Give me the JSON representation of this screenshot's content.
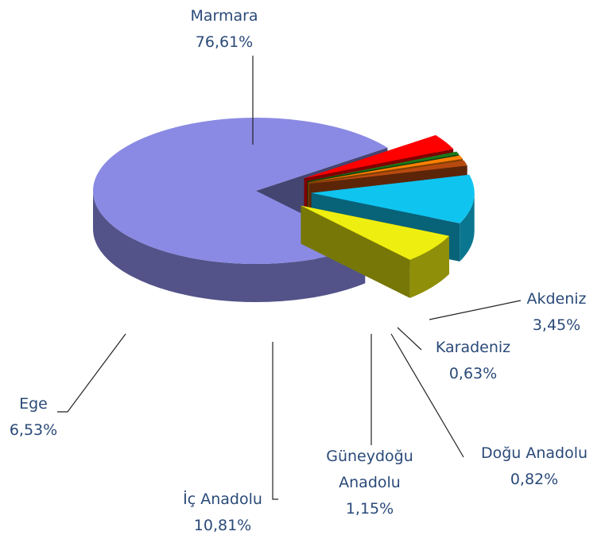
{
  "chart_data": {
    "type": "pie3d",
    "categories": [
      "Marmara",
      "Akdeniz",
      "Karadeniz",
      "Doğu Anadolu",
      "Güneydoğu Anadolu",
      "İç Anadolu",
      "Ege"
    ],
    "values": [
      76.61,
      3.45,
      0.63,
      0.82,
      1.15,
      10.81,
      6.53
    ],
    "value_labels": [
      "76,61%",
      "3,45%",
      "0,63%",
      "0,82%",
      "1,15%",
      "10,81%",
      "6,53%"
    ],
    "colors": [
      "#8a8ae4",
      "#ff0000",
      "#1c7a1c",
      "#ff8000",
      "#b84a10",
      "#10c4f0",
      "#eeee10"
    ]
  }
}
